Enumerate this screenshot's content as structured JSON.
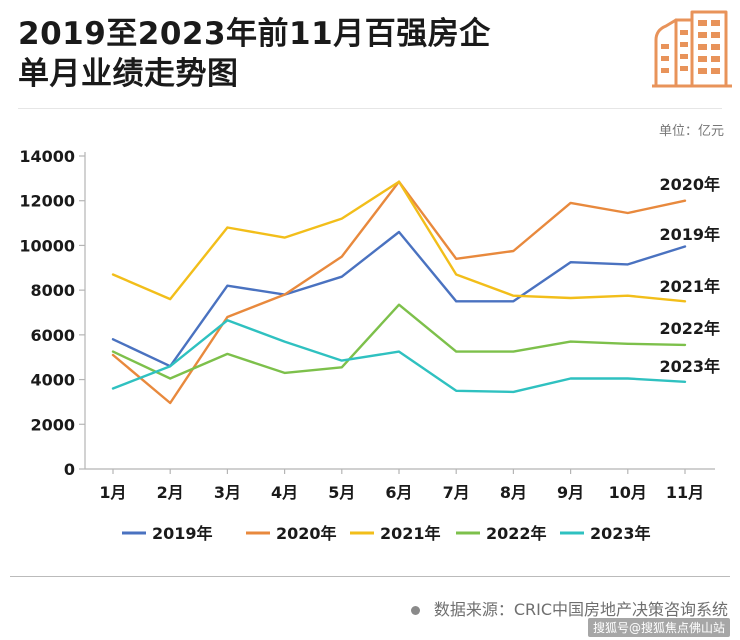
{
  "header": {
    "title_line1": "2019至2023年前11月百强房企",
    "title_line2": "单月业绩走势图",
    "unit": "单位：亿元"
  },
  "footer": {
    "source": "数据来源：CRIC中国房地产决策咨询系统",
    "watermark": "搜狐号@搜狐焦点佛山站"
  },
  "icons": {
    "logo": "building-icon"
  },
  "colors": {
    "accent": "#E8935A",
    "s2019": "#4A72C0",
    "s2020": "#E8893D",
    "s2021": "#F2BE1A",
    "s2022": "#7DC04B",
    "s2023": "#2FC1C0"
  },
  "chart_data": {
    "type": "line",
    "title": "2019至2023年前11月百强房企单月业绩走势图",
    "ylabel": "单位：亿元",
    "xlabel": "",
    "categories": [
      "1月",
      "2月",
      "3月",
      "4月",
      "5月",
      "6月",
      "7月",
      "8月",
      "9月",
      "10月",
      "11月"
    ],
    "ylim": [
      0,
      14000
    ],
    "yticks": [
      "0",
      "2000",
      "4000",
      "6000",
      "8000",
      "10000",
      "12000",
      "14000"
    ],
    "grid": false,
    "legend": "bottom",
    "series": [
      {
        "name": "2019年",
        "color": "#4A72C0",
        "values": [
          5800,
          4600,
          8200,
          7800,
          8600,
          10600,
          7500,
          7500,
          9250,
          9150,
          9950
        ]
      },
      {
        "name": "2020年",
        "color": "#E8893D",
        "values": [
          5100,
          2950,
          6800,
          7800,
          9500,
          12850,
          9400,
          9750,
          11900,
          11450,
          12000
        ]
      },
      {
        "name": "2021年",
        "color": "#F2BE1A",
        "values": [
          8700,
          7600,
          10800,
          10350,
          11200,
          12850,
          8700,
          7750,
          7650,
          7750,
          7500
        ]
      },
      {
        "name": "2022年",
        "color": "#7DC04B",
        "values": [
          5250,
          4050,
          5150,
          4300,
          4550,
          7350,
          5250,
          5250,
          5700,
          5600,
          5550
        ]
      },
      {
        "name": "2023年",
        "color": "#2FC1C0",
        "values": [
          3600,
          4600,
          6650,
          5700,
          4850,
          5250,
          3500,
          3450,
          4050,
          4050,
          3900
        ]
      }
    ]
  }
}
